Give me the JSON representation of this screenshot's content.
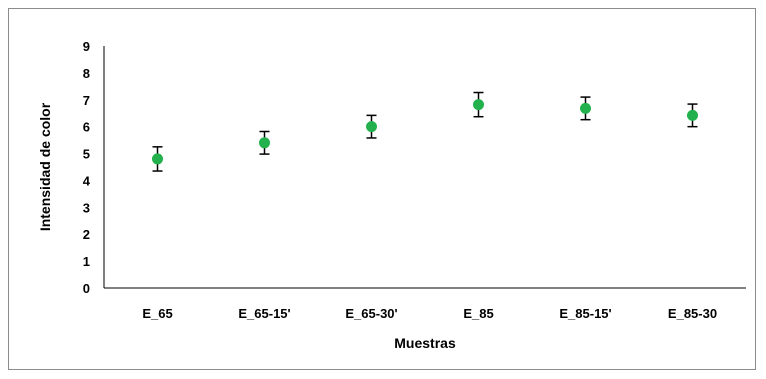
{
  "chart_data": {
    "type": "scatter",
    "title": "",
    "xlabel": "Muestras",
    "ylabel": "Intensidad de color",
    "ylim": [
      0,
      9
    ],
    "yticks": [
      "0",
      "1",
      "2",
      "3",
      "4",
      "5",
      "6",
      "7",
      "8",
      "9"
    ],
    "categories": [
      "E_65",
      "E_65-15'",
      "E_65-30'",
      "E_85",
      "E_85-15'",
      "E_85-30"
    ],
    "values": [
      4.8,
      5.4,
      6.0,
      6.82,
      6.68,
      6.42
    ],
    "error": [
      0.45,
      0.42,
      0.42,
      0.45,
      0.42,
      0.42
    ],
    "marker_color": "#22b14c",
    "error_bar_color": "#000000",
    "grid": false,
    "legend": "none"
  }
}
